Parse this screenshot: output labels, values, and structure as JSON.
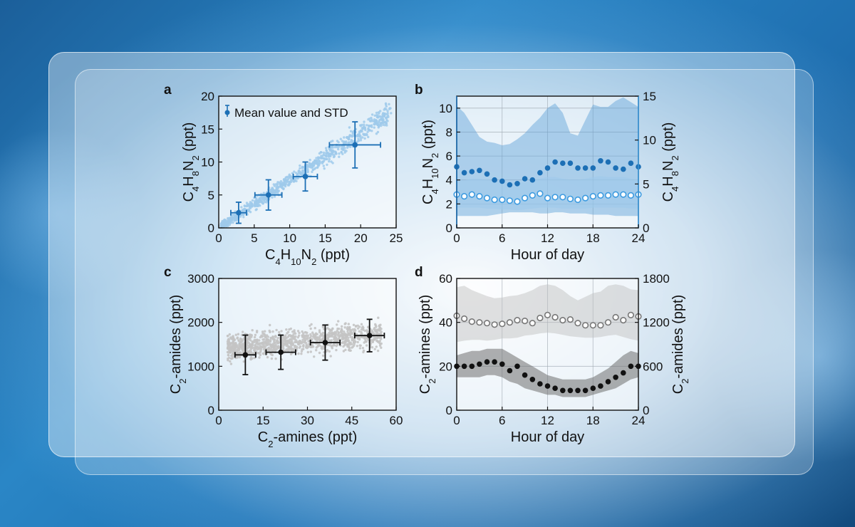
{
  "colors": {
    "blue_dark": "#1c6fb5",
    "blue_light": "#9fcaeb",
    "blue_band": "#5b9fd8",
    "blue_axis": "#3d9be0",
    "gray_points": "#c4c4c4",
    "gray_band": "#bdbdbd",
    "black": "#111111"
  },
  "chart_data": [
    {
      "id": "a",
      "panel_letter": "a",
      "type": "scatter",
      "xlabel": {
        "base": "C",
        "sub1": "4",
        "mid": "H",
        "sub2": "10",
        "mid2": "N",
        "sub3": "2",
        "tail": " (ppt)"
      },
      "ylabel": {
        "base": "C",
        "sub1": "4",
        "mid": "H",
        "sub2": "8",
        "mid2": "N",
        "sub3": "2",
        "tail": " (ppt)"
      },
      "xlim": [
        0,
        25
      ],
      "ylim": [
        0,
        20
      ],
      "xticks": [
        0,
        5,
        10,
        15,
        20,
        25
      ],
      "yticks": [
        0,
        5,
        10,
        15,
        20
      ],
      "legend": {
        "label": "Mean value and STD",
        "position": "top-left"
      },
      "scatter_trend": {
        "slope": 0.72,
        "spread": 1.6,
        "n": 900
      },
      "mean_points": [
        {
          "x": 2.8,
          "y": 2.3,
          "xerr": 1.1,
          "yerr": 1.6
        },
        {
          "x": 7.0,
          "y": 5.0,
          "xerr": 1.9,
          "yerr": 2.3
        },
        {
          "x": 12.2,
          "y": 7.8,
          "xerr": 1.7,
          "yerr": 2.2
        },
        {
          "x": 19.2,
          "y": 12.6,
          "xerr": 3.6,
          "yerr": 3.5
        }
      ]
    },
    {
      "id": "b",
      "panel_letter": "b",
      "type": "line",
      "xlabel": "Hour of day",
      "ylabel_left": {
        "base": "C",
        "sub1": "4",
        "mid": "H",
        "sub2": "10",
        "mid2": "N",
        "sub3": "2",
        "tail": " (ppt)"
      },
      "ylabel_right": {
        "base": "C",
        "sub1": "4",
        "mid": "H",
        "sub2": "8",
        "mid2": "N",
        "sub3": "2",
        "tail": " (ppt)"
      },
      "xlim": [
        0,
        24
      ],
      "ylim_left": [
        0,
        11
      ],
      "ylim_right": [
        0,
        15
      ],
      "xticks": [
        0,
        6,
        12,
        18,
        24
      ],
      "yticks_left": [
        0,
        2,
        4,
        6,
        8,
        10
      ],
      "yticks_right": [
        0,
        5,
        10,
        15
      ],
      "x": [
        0,
        1,
        2,
        3,
        4,
        5,
        6,
        7,
        8,
        9,
        10,
        11,
        12,
        13,
        14,
        15,
        16,
        17,
        18,
        19,
        20,
        21,
        22,
        23,
        24
      ],
      "series_left": {
        "name": "C4H10N2",
        "values": [
          5.1,
          4.6,
          4.7,
          4.8,
          4.5,
          4.0,
          3.9,
          3.6,
          3.7,
          4.1,
          4.0,
          4.6,
          5.0,
          5.5,
          5.4,
          5.4,
          5.0,
          5.0,
          5.0,
          5.6,
          5.5,
          5.0,
          4.9,
          5.4,
          5.1
        ],
        "upper": [
          10.2,
          9.6,
          8.6,
          7.6,
          7.2,
          7.1,
          6.9,
          7.0,
          7.4,
          7.9,
          8.6,
          9.2,
          10.0,
          10.4,
          9.6,
          7.9,
          7.7,
          9.0,
          10.3,
          10.1,
          10.1,
          10.6,
          10.9,
          10.5,
          10.1
        ],
        "lower": [
          1.0,
          1.0,
          1.0,
          1.0,
          1.0,
          1.1,
          1.2,
          1.3,
          1.3,
          1.3,
          1.3,
          1.2,
          1.2,
          1.3,
          1.3,
          1.2,
          1.2,
          1.2,
          1.1,
          1.1,
          1.1,
          1.0,
          1.0,
          1.0,
          1.0
        ]
      },
      "series_right": {
        "name": "C4H8N2",
        "values": [
          3.8,
          3.6,
          3.8,
          3.6,
          3.4,
          3.2,
          3.2,
          3.1,
          3.0,
          3.4,
          3.7,
          3.9,
          3.4,
          3.5,
          3.5,
          3.3,
          3.2,
          3.4,
          3.6,
          3.7,
          3.7,
          3.8,
          3.8,
          3.7,
          3.8
        ],
        "upper": [
          5.5,
          5.4,
          5.6,
          5.6,
          5.5,
          5.4,
          5.3,
          5.2,
          5.1,
          5.2,
          5.4,
          5.6,
          5.8,
          5.8,
          5.6,
          5.5,
          5.5,
          5.6,
          5.8,
          5.9,
          5.8,
          5.8,
          5.8,
          5.6,
          5.5
        ],
        "lower": [
          2.3,
          2.3,
          2.3,
          2.3,
          2.2,
          2.2,
          2.1,
          2.1,
          2.0,
          2.1,
          2.2,
          2.3,
          2.3,
          2.3,
          2.2,
          2.2,
          2.2,
          2.2,
          2.3,
          2.3,
          2.3,
          2.3,
          2.3,
          2.2,
          2.2
        ]
      }
    },
    {
      "id": "c",
      "panel_letter": "c",
      "type": "scatter",
      "xlabel": {
        "base": "C",
        "sub1": "2",
        "tail": "-amines (ppt)"
      },
      "ylabel": {
        "base": "C",
        "sub1": "2",
        "tail": "-amides (ppt)"
      },
      "xlim": [
        0,
        60
      ],
      "ylim": [
        0,
        3000
      ],
      "xticks": [
        0,
        15,
        30,
        45,
        60
      ],
      "yticks": [
        0,
        1000,
        2000,
        3000
      ],
      "scatter_cloud": {
        "x_range": [
          3,
          55
        ],
        "y_center": 1400,
        "y_spread": 420,
        "n": 1200
      },
      "mean_points": [
        {
          "x": 9,
          "y": 1260,
          "xerr": 3.5,
          "yerr": 450
        },
        {
          "x": 21,
          "y": 1320,
          "xerr": 5.0,
          "yerr": 390
        },
        {
          "x": 36,
          "y": 1540,
          "xerr": 5.0,
          "yerr": 400
        },
        {
          "x": 51,
          "y": 1700,
          "xerr": 5.0,
          "yerr": 370
        }
      ]
    },
    {
      "id": "d",
      "panel_letter": "d",
      "type": "line",
      "xlabel": "Hour of day",
      "ylabel_left": {
        "base": "C",
        "sub1": "2",
        "tail": "-amines (ppt)"
      },
      "ylabel_right": {
        "base": "C",
        "sub1": "2",
        "tail": "-amides (ppt)"
      },
      "xlim": [
        0,
        24
      ],
      "ylim_left": [
        0,
        60
      ],
      "ylim_right": [
        0,
        1800
      ],
      "xticks": [
        0,
        6,
        12,
        18,
        24
      ],
      "yticks_left": [
        0,
        20,
        40,
        60
      ],
      "yticks_right": [
        0,
        600,
        1200,
        1800
      ],
      "x": [
        0,
        1,
        2,
        3,
        4,
        5,
        6,
        7,
        8,
        9,
        10,
        11,
        12,
        13,
        14,
        15,
        16,
        17,
        18,
        19,
        20,
        21,
        22,
        23,
        24
      ],
      "series_left": {
        "name": "C2-amines",
        "values": [
          20,
          20,
          20,
          21,
          22,
          22,
          21,
          18,
          20,
          16,
          14,
          12,
          11,
          10,
          9,
          9,
          9,
          9,
          10,
          11,
          13,
          15,
          17,
          20,
          20
        ],
        "upper": [
          25,
          26,
          27,
          27,
          28,
          28,
          28,
          26,
          24,
          22,
          20,
          18,
          16,
          15,
          14,
          14,
          14,
          14,
          15,
          17,
          19,
          22,
          25,
          27,
          26
        ],
        "lower": [
          15,
          15,
          15,
          15,
          16,
          16,
          15,
          13,
          12,
          10,
          9,
          8,
          7,
          7,
          6,
          6,
          6,
          6,
          7,
          8,
          9,
          10,
          12,
          14,
          15
        ]
      },
      "series_right": {
        "name": "C2-amides",
        "values": [
          1290,
          1250,
          1210,
          1200,
          1190,
          1170,
          1180,
          1200,
          1230,
          1220,
          1190,
          1260,
          1300,
          1270,
          1230,
          1240,
          1190,
          1160,
          1160,
          1160,
          1200,
          1270,
          1230,
          1300,
          1280
        ],
        "upper": [
          1680,
          1700,
          1640,
          1600,
          1560,
          1530,
          1540,
          1560,
          1570,
          1600,
          1640,
          1700,
          1720,
          1700,
          1640,
          1560,
          1500,
          1550,
          1600,
          1620,
          1700,
          1720,
          1700,
          1650,
          1640
        ],
        "lower": [
          930,
          950,
          960,
          960,
          950,
          960,
          980,
          980,
          990,
          1020,
          1030,
          1050,
          1060,
          1050,
          1030,
          1010,
          1000,
          990,
          990,
          1000,
          1020,
          1030,
          1000,
          970,
          950
        ]
      }
    }
  ]
}
